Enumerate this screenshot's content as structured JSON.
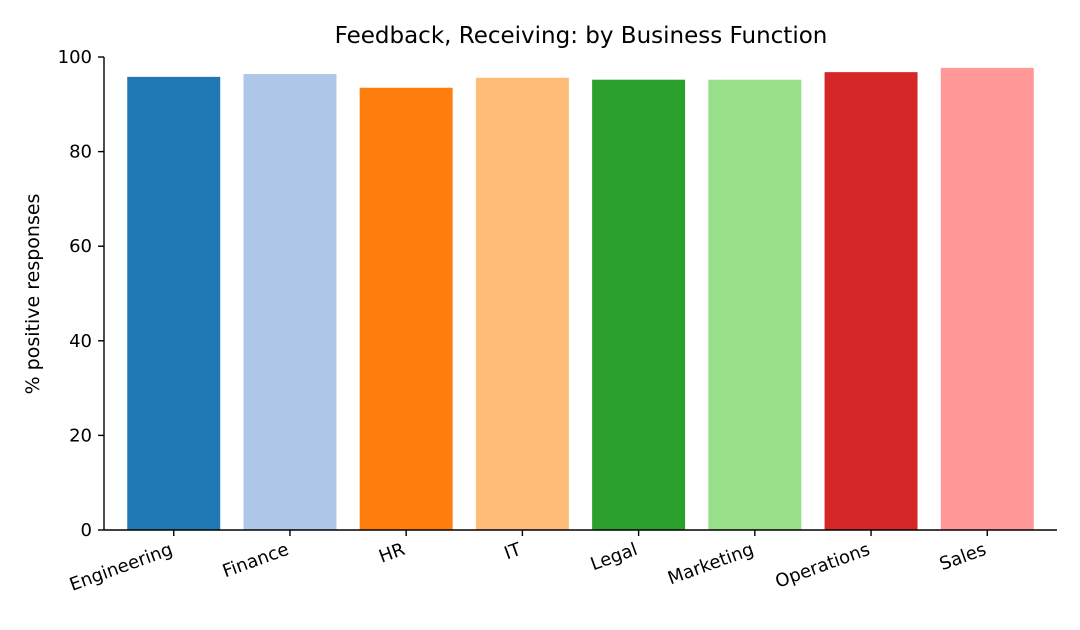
{
  "chart_data": {
    "type": "bar",
    "title": "Feedback, Receiving: by Business Function",
    "xlabel": "",
    "ylabel": "% positive responses",
    "ylim": [
      0,
      100
    ],
    "yticks": [
      0,
      20,
      40,
      60,
      80,
      100
    ],
    "grid": false,
    "legend": "none",
    "categories": [
      "Engineering",
      "Finance",
      "HR",
      "IT",
      "Legal",
      "Marketing",
      "Operations",
      "Sales"
    ],
    "values": [
      95.8,
      96.4,
      93.5,
      95.6,
      95.2,
      95.2,
      96.8,
      97.7
    ],
    "colors": [
      "#1f77b4",
      "#aec7e8",
      "#ff7f0e",
      "#ffbb78",
      "#2ca02c",
      "#98df8a",
      "#d62728",
      "#ff9896"
    ]
  }
}
